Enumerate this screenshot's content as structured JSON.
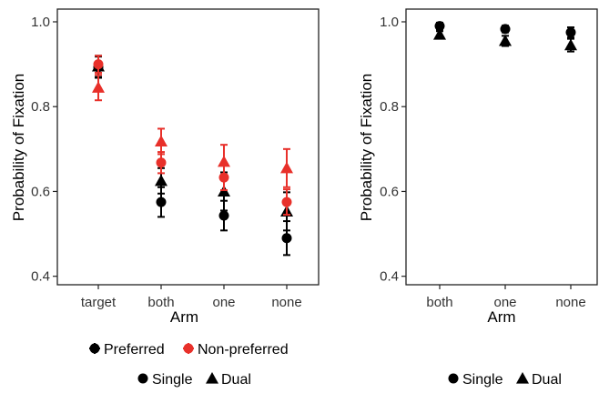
{
  "chart_data": [
    {
      "type": "scatter",
      "panel": "left",
      "xlabel": "Arm",
      "ylabel": "Probability of Fixation",
      "categories": [
        "target",
        "both",
        "one",
        "none"
      ],
      "ylim": [
        0.38,
        1.03
      ],
      "yticks": [
        0.4,
        0.6,
        0.8,
        1.0
      ],
      "ytick_labels": [
        "0.4",
        "0.6",
        "0.8",
        "1.0"
      ],
      "grid": false,
      "series": [
        {
          "condition": "Preferred",
          "shape": "circle",
          "color": "#000000",
          "values": [
            0.893,
            0.575,
            0.543,
            0.49
          ],
          "err": [
            0.025,
            0.035,
            0.035,
            0.04
          ]
        },
        {
          "condition": "Preferred",
          "shape": "triangle",
          "color": "#000000",
          "values": [
            0.895,
            0.625,
            0.6,
            0.553
          ],
          "err": [
            0.025,
            0.03,
            0.045,
            0.045
          ]
        },
        {
          "condition": "Non-preferred",
          "shape": "circle",
          "color": "#e8302a",
          "values": [
            0.9,
            0.668,
            0.633,
            0.575
          ],
          "err": [
            0.02,
            0.025,
            0.03,
            0.03
          ]
        },
        {
          "condition": "Non-preferred",
          "shape": "triangle",
          "color": "#e8302a",
          "values": [
            0.845,
            0.718,
            0.67,
            0.655
          ],
          "err": [
            0.03,
            0.03,
            0.04,
            0.045
          ]
        }
      ],
      "legend": {
        "row1": [
          {
            "label": "Preferred",
            "color": "#000000"
          },
          {
            "label": "Non-preferred",
            "color": "#e8302a"
          }
        ],
        "row2": [
          {
            "label": "Single",
            "shape": "circle"
          },
          {
            "label": "Dual",
            "shape": "triangle"
          }
        ],
        "placement": "bottom"
      }
    },
    {
      "type": "scatter",
      "panel": "right",
      "xlabel": "Arm",
      "ylabel": "Probability of Fixation",
      "categories": [
        "both",
        "one",
        "none"
      ],
      "ylim": [
        0.38,
        1.03
      ],
      "yticks": [
        0.4,
        0.6,
        0.8,
        1.0
      ],
      "ytick_labels": [
        "0.4",
        "0.6",
        "0.8",
        "1.0"
      ],
      "grid": false,
      "series": [
        {
          "shape": "circle",
          "color": "#000000",
          "values": [
            0.99,
            0.983,
            0.975
          ],
          "err": [
            0.008,
            0.008,
            0.012
          ]
        },
        {
          "shape": "triangle",
          "color": "#000000",
          "values": [
            0.97,
            0.955,
            0.945
          ],
          "err": [
            0.008,
            0.012,
            0.015
          ]
        }
      ],
      "legend": {
        "row2": [
          {
            "label": "Single",
            "shape": "circle"
          },
          {
            "label": "Dual",
            "shape": "triangle"
          }
        ],
        "placement": "bottom"
      }
    }
  ]
}
